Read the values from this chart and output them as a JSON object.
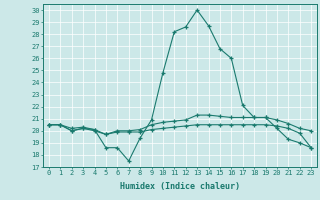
{
  "xlabel": "Humidex (Indice chaleur)",
  "bg_color": "#cce8e8",
  "line_color": "#1a7a6e",
  "xlim": [
    -0.5,
    23.5
  ],
  "ylim": [
    17,
    30.5
  ],
  "yticks": [
    17,
    18,
    19,
    20,
    21,
    22,
    23,
    24,
    25,
    26,
    27,
    28,
    29,
    30
  ],
  "xticks": [
    0,
    1,
    2,
    3,
    4,
    5,
    6,
    7,
    8,
    9,
    10,
    11,
    12,
    13,
    14,
    15,
    16,
    17,
    18,
    19,
    20,
    21,
    22,
    23
  ],
  "series": [
    {
      "x": [
        0,
        1,
        2,
        3,
        4,
        5,
        6,
        7,
        8,
        9,
        10,
        11,
        12,
        13,
        14,
        15,
        16,
        17,
        18,
        19,
        20,
        21,
        22,
        23
      ],
      "y": [
        20.5,
        20.5,
        20.0,
        20.2,
        20.1,
        18.6,
        18.6,
        17.5,
        19.4,
        20.9,
        24.8,
        28.2,
        28.6,
        30.0,
        28.7,
        26.8,
        26.0,
        22.1,
        21.1,
        21.1,
        20.2,
        19.3,
        19.0,
        18.6
      ]
    },
    {
      "x": [
        0,
        1,
        2,
        3,
        4,
        5,
        6,
        7,
        8,
        9,
        10,
        11,
        12,
        13,
        14,
        15,
        16,
        17,
        18,
        19,
        20,
        21,
        22,
        23
      ],
      "y": [
        20.5,
        20.5,
        20.2,
        20.3,
        20.1,
        19.7,
        20.0,
        20.0,
        20.1,
        20.5,
        20.7,
        20.8,
        20.9,
        21.3,
        21.3,
        21.2,
        21.1,
        21.1,
        21.1,
        21.1,
        20.9,
        20.6,
        20.2,
        20.0
      ]
    },
    {
      "x": [
        0,
        1,
        2,
        3,
        4,
        5,
        6,
        7,
        8,
        9,
        10,
        11,
        12,
        13,
        14,
        15,
        16,
        17,
        18,
        19,
        20,
        21,
        22,
        23
      ],
      "y": [
        20.5,
        20.5,
        20.0,
        20.2,
        20.0,
        19.7,
        19.9,
        19.9,
        19.9,
        20.1,
        20.2,
        20.3,
        20.4,
        20.5,
        20.5,
        20.5,
        20.5,
        20.5,
        20.5,
        20.5,
        20.4,
        20.2,
        19.8,
        18.6
      ]
    }
  ]
}
